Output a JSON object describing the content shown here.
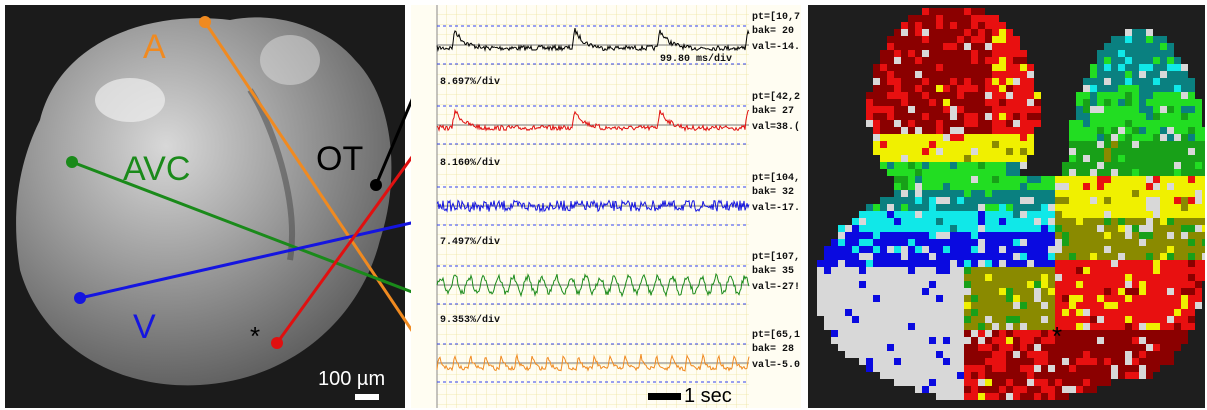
{
  "labels": {
    "a": "A",
    "avc": "AVC",
    "ot": "OT",
    "v": "V",
    "star": "*",
    "scale_um": "100 µm",
    "scale_sec": "1 sec"
  },
  "traces": [
    {
      "pt": "pt=[10,7",
      "bak": "bak= 20",
      "val": "val=-14.",
      "timescale": "99.80 ms/div"
    },
    {
      "scale": "8.697%/div",
      "pt": "pt=[42,2",
      "bak": "bak= 27",
      "val": "val=38.("
    },
    {
      "scale": "8.160%/div",
      "pt": "pt=[104,",
      "bak": "bak= 32",
      "val": "val=-17."
    },
    {
      "scale": "7.497%/div",
      "pt": "pt=[107,",
      "bak": "bak= 35",
      "val": "val=-27!"
    },
    {
      "scale": "9.353%/div",
      "pt": "pt=[65,1",
      "bak": "bak= 28",
      "val": "val=-5.0"
    }
  ]
}
